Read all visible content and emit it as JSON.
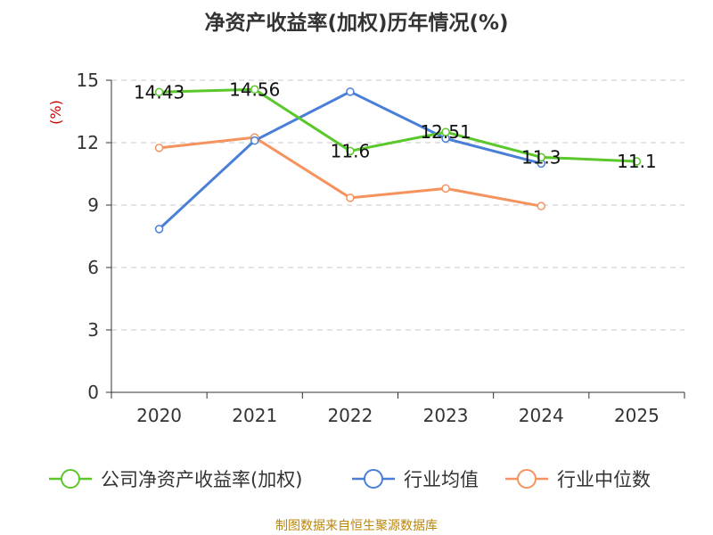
{
  "chart_data": {
    "type": "line",
    "title": "净资产收益率(加权)历年情况(%)",
    "ylabel": "(%)",
    "xlabel": "",
    "categories": [
      "2020",
      "2021",
      "2022",
      "2023",
      "2024",
      "2025"
    ],
    "ylim": [
      0,
      15
    ],
    "yticks": [
      0,
      3,
      6,
      9,
      12,
      15
    ],
    "grid": true,
    "legend": "bottom",
    "series": [
      {
        "name": "公司净资产收益率(加权)",
        "color": "#5ac72b",
        "values": [
          14.43,
          14.56,
          11.6,
          12.51,
          11.3,
          11.1
        ],
        "labels": [
          "14.43",
          "14.56",
          "11.6",
          "12.51",
          "11.3",
          "11.1"
        ]
      },
      {
        "name": "行业均值",
        "color": "#4a7fd8",
        "values": [
          7.85,
          12.1,
          14.45,
          12.2,
          11.0,
          null
        ]
      },
      {
        "name": "行业中位数",
        "color": "#f5925e",
        "values": [
          11.75,
          12.25,
          9.35,
          9.8,
          8.95,
          null
        ]
      }
    ]
  },
  "source": "制图数据来自恒生聚源数据库"
}
